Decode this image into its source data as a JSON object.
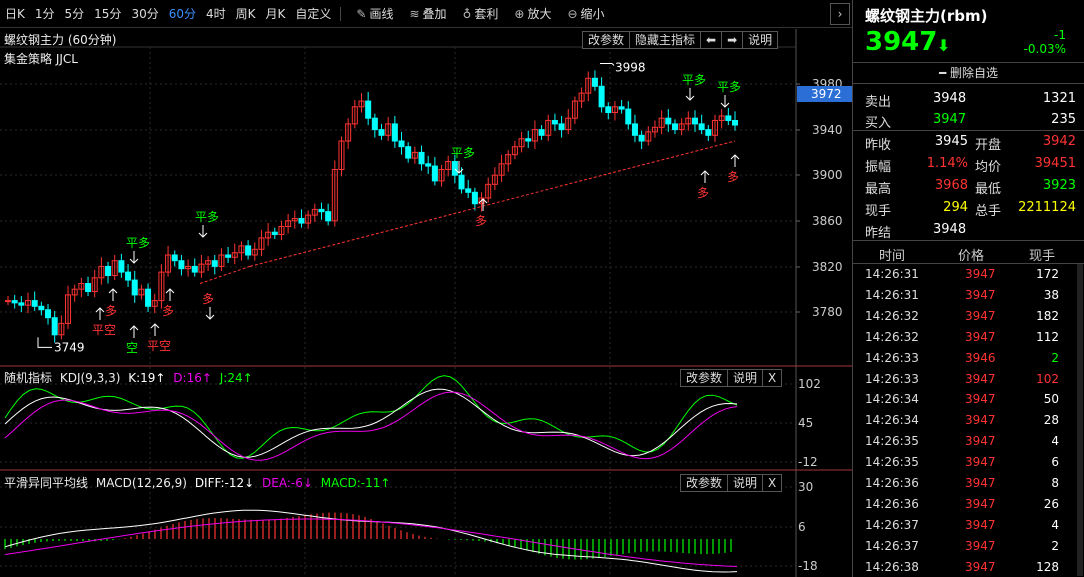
{
  "toolbar": {
    "periods": [
      "日K",
      "1分",
      "5分",
      "15分",
      "30分",
      "60分",
      "4时",
      "周K",
      "月K",
      "自定义"
    ],
    "active_period": "60分",
    "tools": [
      {
        "icon": "pencil-icon",
        "glyph": "✎",
        "label": "画线"
      },
      {
        "icon": "layers-icon",
        "glyph": "≋",
        "label": "叠加"
      },
      {
        "icon": "money-bag-icon",
        "glyph": "♁",
        "label": "套利"
      },
      {
        "icon": "zoom-in-icon",
        "glyph": "⊕",
        "label": "放大"
      },
      {
        "icon": "zoom-out-icon",
        "glyph": "⊖",
        "label": "缩小"
      }
    ],
    "collapse_glyph": "›"
  },
  "main_chart": {
    "title": "螺纹钢主力 (60分钟)",
    "strategy": "集金策略 JJCL",
    "buttons": {
      "params": "改参数",
      "hide": "隐藏主指标",
      "prev": "⬅",
      "next": "➡",
      "help": "说明"
    },
    "price_labels": [
      "3980",
      "3940",
      "3900",
      "3860",
      "3820",
      "3780"
    ],
    "current_price_tag": "3972",
    "high_label": "3998",
    "low_label": "3749",
    "signals": [
      {
        "text": "平空",
        "color": "#f33"
      },
      {
        "text": "多",
        "color": "#f33"
      },
      {
        "text": "平多",
        "color": "#0f0"
      },
      {
        "text": "空",
        "color": "#0f0"
      },
      {
        "text": "平空",
        "color": "#f33"
      },
      {
        "text": "多",
        "color": "#f33"
      },
      {
        "text": "平多",
        "color": "#0f0"
      },
      {
        "text": "多",
        "color": "#f33"
      },
      {
        "text": "平多",
        "color": "#0f0"
      },
      {
        "text": "多",
        "color": "#f33"
      },
      {
        "text": "平多",
        "color": "#0f0"
      },
      {
        "text": "平多",
        "color": "#0f0"
      },
      {
        "text": "多",
        "color": "#f33"
      },
      {
        "text": "多",
        "color": "#f33"
      }
    ]
  },
  "kdj": {
    "name": "随机指标",
    "params": "KDJ(9,3,3)",
    "k": "K:19↑",
    "d": "D:16↑",
    "j": "J:24↑",
    "buttons": {
      "params": "改参数",
      "help": "说明",
      "close": "X"
    },
    "axis": [
      "102",
      "45",
      "-12"
    ]
  },
  "macd": {
    "name": "平滑异同平均线",
    "params": "MACD(12,26,9)",
    "diff": "DIFF:-12↓",
    "dea": "DEA:-6↓",
    "macd": "MACD:-11↑",
    "buttons": {
      "params": "改参数",
      "help": "说明",
      "close": "X"
    },
    "axis": [
      "30",
      "6",
      "-18"
    ]
  },
  "colors": {
    "up": "#f33",
    "down": "#0ff",
    "k_line": "#fff",
    "d_line": "#e0e",
    "j_line": "#0f0",
    "accent_blue": "#3b8fff"
  },
  "quote": {
    "title": "螺纹钢主力(rbm)",
    "price": "3947",
    "change": "-1",
    "change_pct": "-0.03%",
    "delete_label": "删除自选",
    "sell": {
      "label": "卖出",
      "price": "3948",
      "vol": "1321"
    },
    "buy": {
      "label": "买入",
      "price": "3947",
      "vol": "235"
    },
    "rows": [
      {
        "l1": "昨收",
        "v1": "3945",
        "c1": "#fff",
        "l2": "开盘",
        "v2": "3942",
        "c2": "#f33"
      },
      {
        "l1": "振幅",
        "v1": "1.14%",
        "c1": "#f33",
        "l2": "均价",
        "v2": "39451",
        "c2": "#f33"
      },
      {
        "l1": "最高",
        "v1": "3968",
        "c1": "#f33",
        "l2": "最低",
        "v2": "3923",
        "c2": "#0f0"
      },
      {
        "l1": "现手",
        "v1": "294",
        "c1": "#ff0",
        "l2": "总手",
        "v2": "2211124",
        "c2": "#ff0"
      }
    ],
    "settle": {
      "label": "昨结",
      "value": "3948"
    }
  },
  "ticks": {
    "headers": [
      "时间",
      "价格",
      "现手"
    ],
    "rows": [
      {
        "time": "14:26:31",
        "price": "3947",
        "vol": "172",
        "vc": "#fff"
      },
      {
        "time": "14:26:31",
        "price": "3947",
        "vol": "38",
        "vc": "#fff"
      },
      {
        "time": "14:26:32",
        "price": "3947",
        "vol": "182",
        "vc": "#fff"
      },
      {
        "time": "14:26:32",
        "price": "3947",
        "vol": "112",
        "vc": "#fff"
      },
      {
        "time": "14:26:33",
        "price": "3946",
        "vol": "2",
        "vc": "#0f0"
      },
      {
        "time": "14:26:33",
        "price": "3947",
        "vol": "102",
        "vc": "#f33"
      },
      {
        "time": "14:26:34",
        "price": "3947",
        "vol": "50",
        "vc": "#fff"
      },
      {
        "time": "14:26:34",
        "price": "3947",
        "vol": "28",
        "vc": "#fff"
      },
      {
        "time": "14:26:35",
        "price": "3947",
        "vol": "4",
        "vc": "#fff"
      },
      {
        "time": "14:26:35",
        "price": "3947",
        "vol": "6",
        "vc": "#fff"
      },
      {
        "time": "14:26:36",
        "price": "3947",
        "vol": "8",
        "vc": "#fff"
      },
      {
        "time": "14:26:36",
        "price": "3947",
        "vol": "26",
        "vc": "#fff"
      },
      {
        "time": "14:26:37",
        "price": "3947",
        "vol": "4",
        "vc": "#fff"
      },
      {
        "time": "14:26:37",
        "price": "3947",
        "vol": "2",
        "vc": "#fff"
      },
      {
        "time": "14:26:38",
        "price": "3947",
        "vol": "128",
        "vc": "#fff"
      }
    ]
  }
}
